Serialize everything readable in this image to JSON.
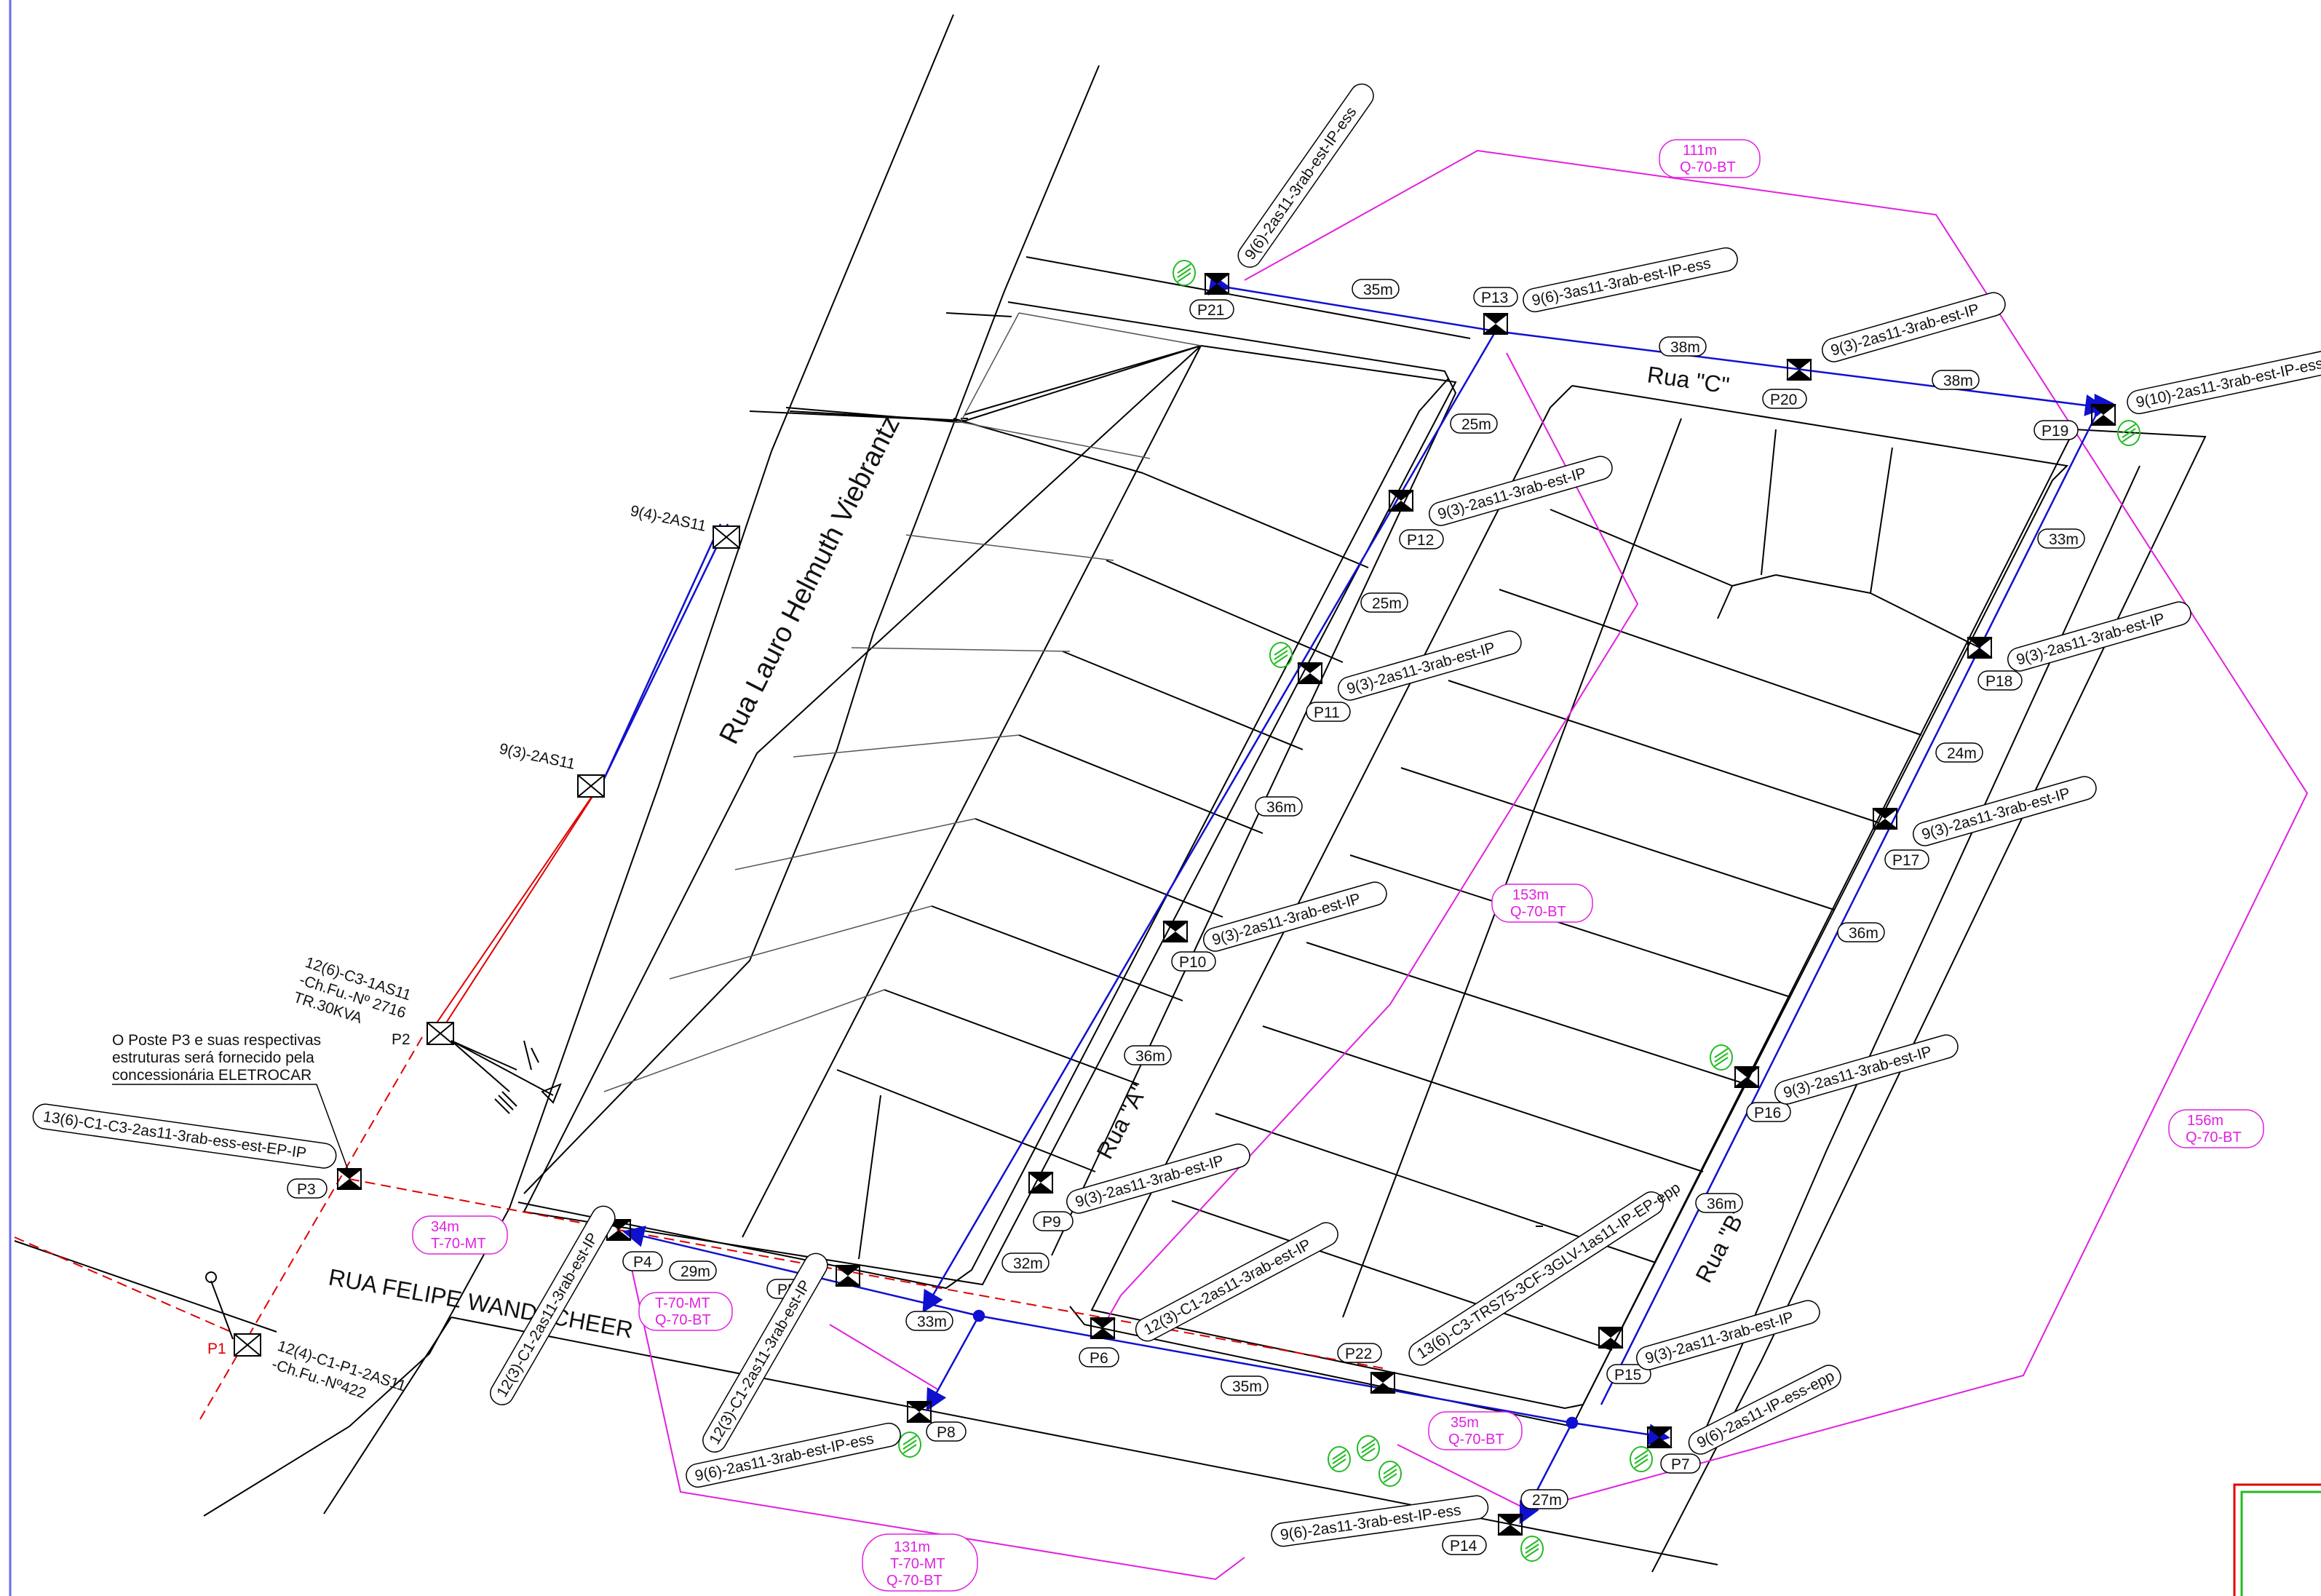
{
  "streets": {
    "lauro": "Rua Lauro Helmuth Viebrantz",
    "felipe": "RUA FELIPE WANDSCHEER",
    "rua_a": "Rua \"A\"",
    "rua_b": "Rua \"B\"",
    "rua_c": "Rua \"C\""
  },
  "notes": {
    "p3_line1": "O Poste P3 e suas respectivas",
    "p3_line2": "estruturas será fornecido pela",
    "p3_line3": "concessionária ELETROCAR",
    "p2_line1": "12(6)-C3-1AS11",
    "p2_line2": "-Ch.Fu.-Nº 2716",
    "p2_line3": "TR.30KVA",
    "p1_line1": "12(4)-C1-P1-2AS11",
    "p1_line2": "-Ch.Fu.-Nº422",
    "pole_a": "9(4)-2AS11",
    "pole_b": "9(3)-2AS11"
  },
  "poles": {
    "P1": "P1",
    "P2": "P2",
    "P3": "P3",
    "P4": "P4",
    "P5": "P5",
    "P6": "P6",
    "P7": "P7",
    "P8": "P8",
    "P9": "P9",
    "P10": "P10",
    "P11": "P11",
    "P12": "P12",
    "P13": "P13",
    "P14": "P14",
    "P15": "P15",
    "P16": "P16",
    "P17": "P17",
    "P18": "P18",
    "P19": "P19",
    "P20": "P20",
    "P21": "P21",
    "P22": "P22"
  },
  "structures": {
    "P3": "13(6)-C1-C3-2as11-3rab-ess-est-EP-IP",
    "P4": "12(3)-C1-2as11-3rab-est-IP",
    "P5": "12(3)-C1-2as11-3rab-est-IP",
    "P6": "12(3)-C1-2as11-3rab-est-IP",
    "P7": "9(6)-2as11-IP-ess-epp",
    "P8": "9(6)-2as11-3rab-est-IP-ess",
    "P9": "9(3)-2as11-3rab-est-IP",
    "P10": "9(3)-2as11-3rab-est-IP",
    "P11": "9(3)-2as11-3rab-est-IP",
    "P12": "9(3)-2as11-3rab-est-IP",
    "P13": "9(6)-3as11-3rab-est-IP-ess",
    "P14": "9(6)-2as11-3rab-est-IP-ess",
    "P15": "9(3)-2as11-3rab-est-IP",
    "P16": "9(3)-2as11-3rab-est-IP",
    "P17": "9(3)-2as11-3rab-est-IP",
    "P18": "9(3)-2as11-3rab-est-IP",
    "P19": "9(10)-2as11-3rab-est-IP-ess",
    "P20": "9(3)-2as11-3rab-est-IP",
    "P21": "9(6)-2as11-3rab-est-IP-ess",
    "P22": "13(6)-C3-TRS75-3CF-3GLV-1as11-IP-EP-epp"
  },
  "spans": {
    "s1": "35m",
    "s2": "38m",
    "s3": "38m",
    "s4": "25m",
    "s5": "25m",
    "s6": "36m",
    "s7": "36m",
    "s8": "32m",
    "s9": "33m",
    "s10": "29m",
    "s11": "35m",
    "s12": "27m",
    "s13": "36m",
    "s14": "36m",
    "s15": "24m",
    "s16": "33m"
  },
  "networks": {
    "n1a": "111m",
    "n1b": "Q-70-BT",
    "n2a": "153m",
    "n2b": "Q-70-BT",
    "n3a": "156m",
    "n3b": "Q-70-BT",
    "n4a": "34m",
    "n4b": "T-70-MT",
    "n5a": "T-70-MT",
    "n5b": "Q-70-BT",
    "n6a": "35m",
    "n6b": "Q-70-BT",
    "n7a": "131m",
    "n7b": "T-70-MT",
    "n7c": "Q-70-BT"
  },
  "colors": {
    "blue_line": "#1010d0",
    "red_line": "#e00000",
    "magenta_line": "#e020e0",
    "green_symbol": "#22bb22"
  }
}
